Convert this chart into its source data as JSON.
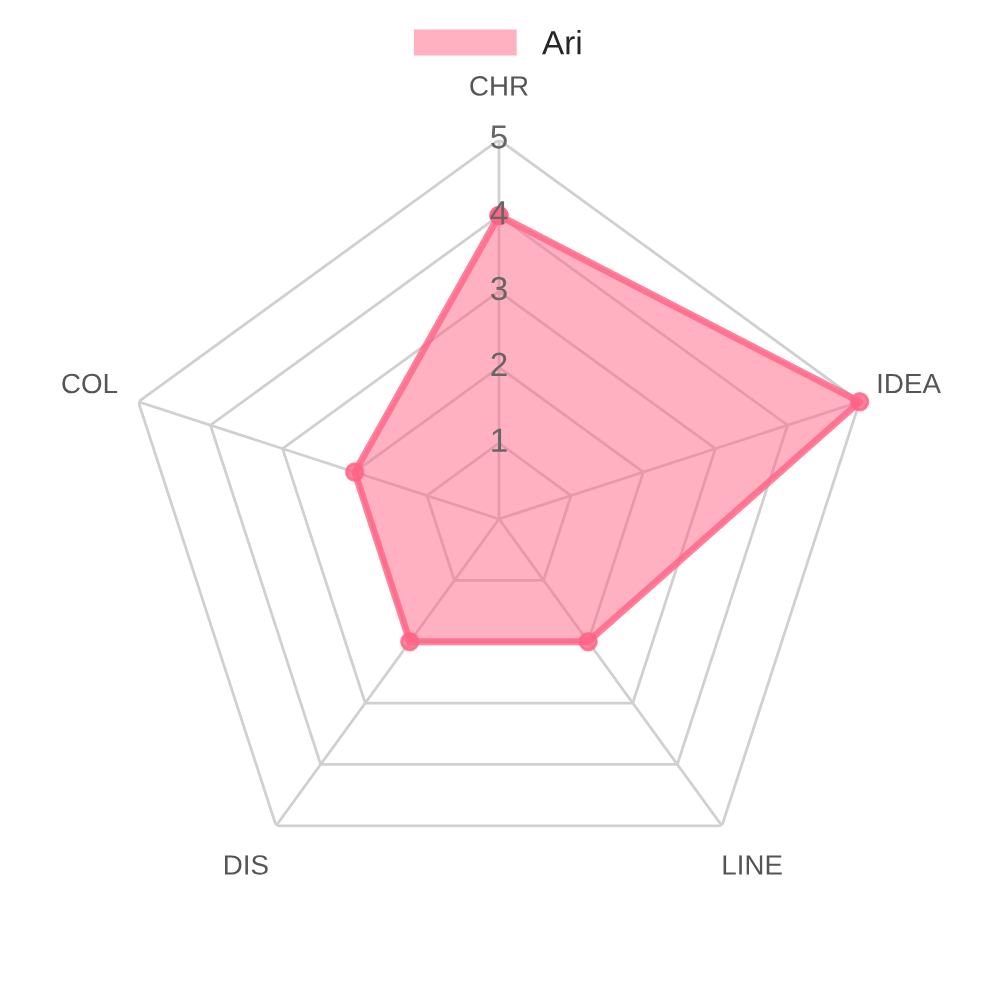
{
  "chart_data": {
    "type": "radar",
    "categories": [
      "CHR",
      "IDEA",
      "LINE",
      "DIS",
      "COL"
    ],
    "series": [
      {
        "name": "Ari",
        "color": "#ff6384",
        "values": [
          4,
          5,
          2,
          2,
          2
        ]
      }
    ],
    "ylim": [
      0,
      5
    ],
    "yticks": [
      1,
      2,
      3,
      4,
      5
    ],
    "grid": true,
    "legend": "top",
    "marker": "circle"
  }
}
